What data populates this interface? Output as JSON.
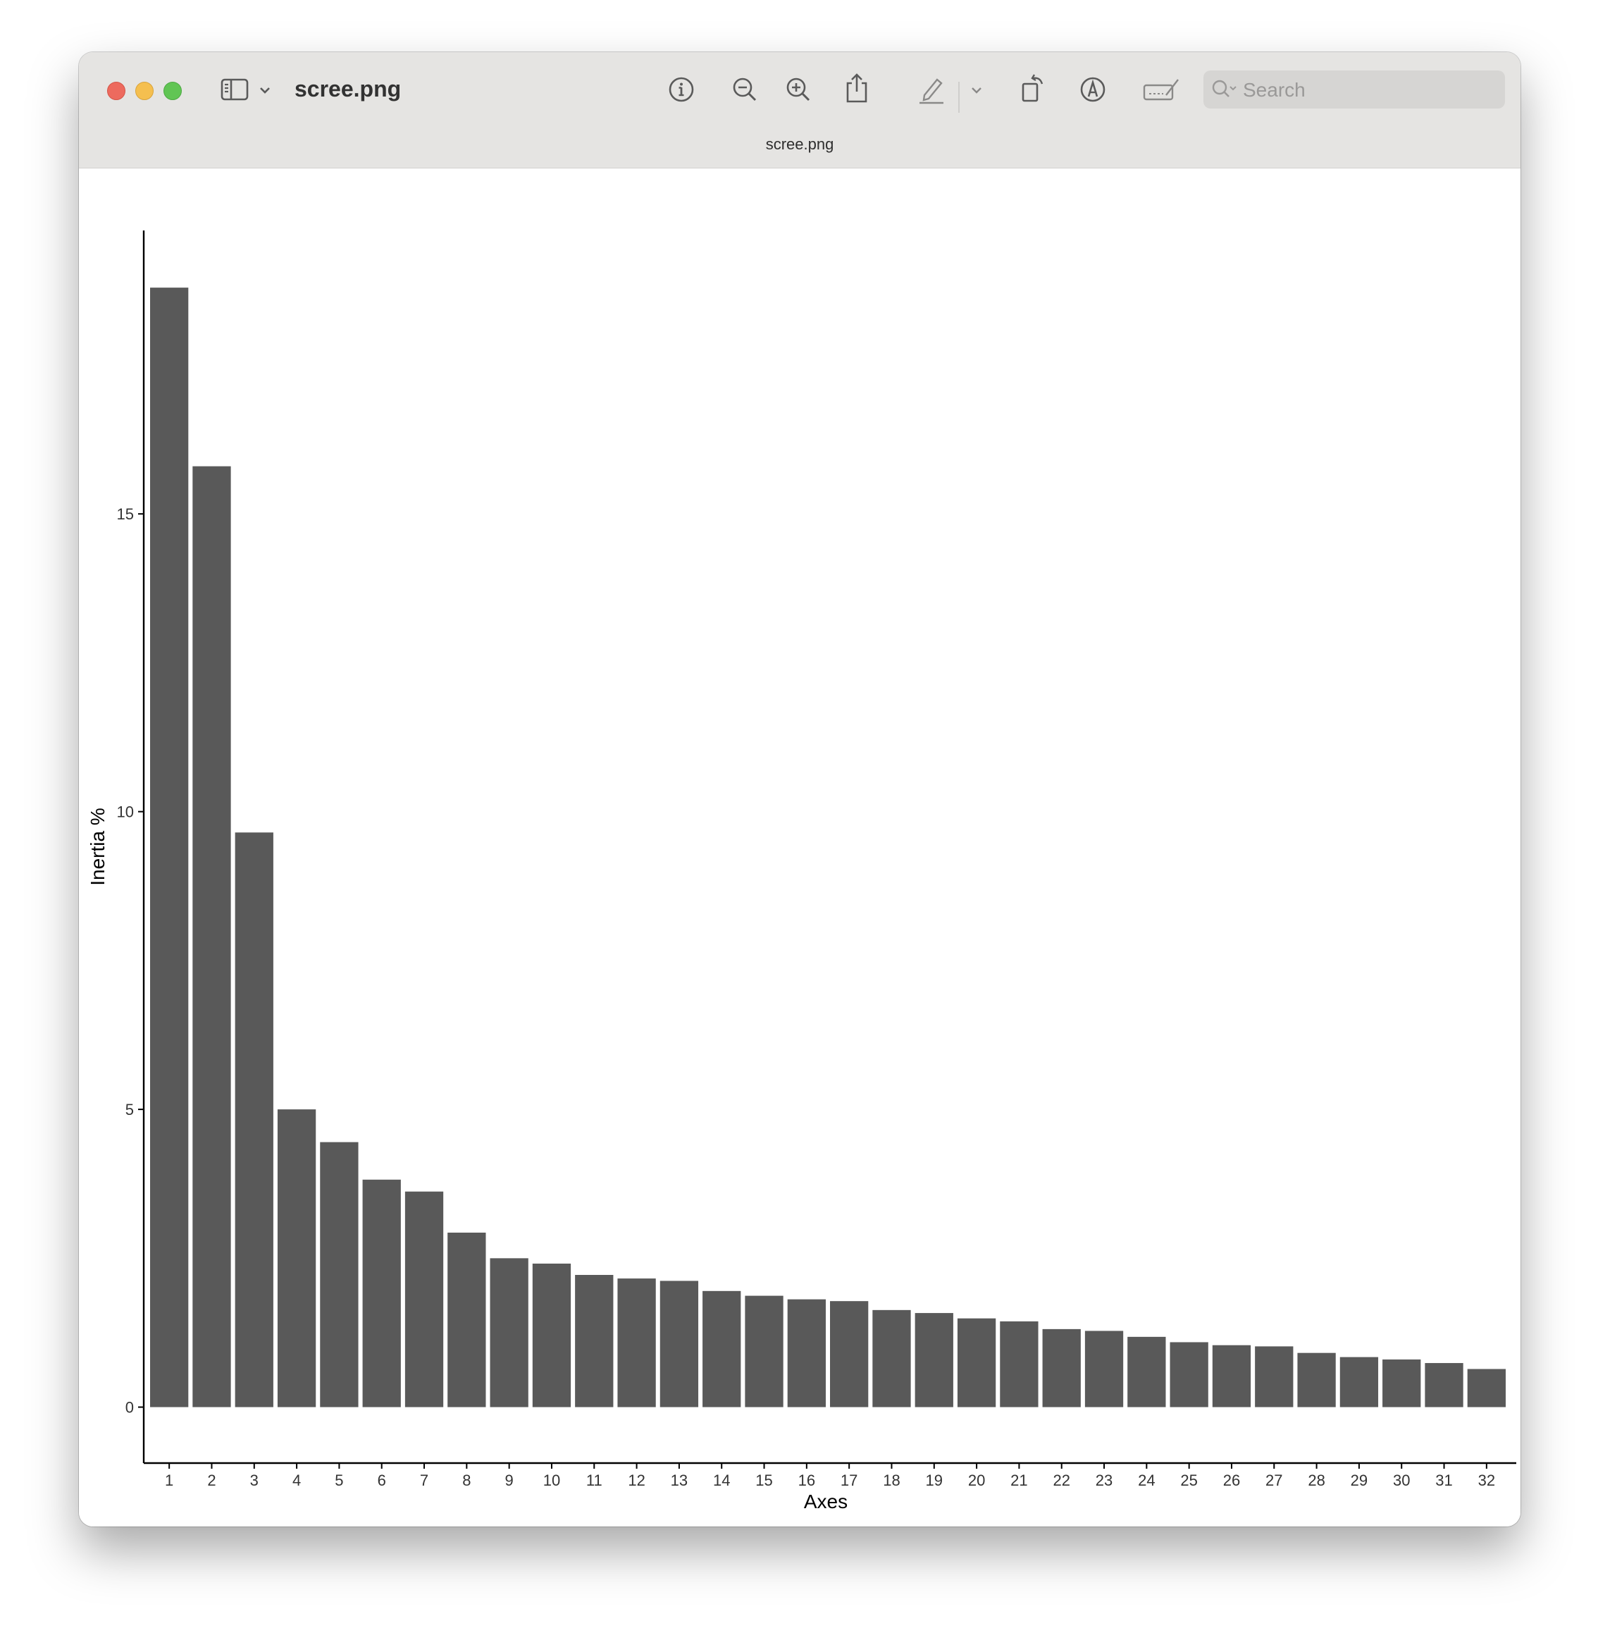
{
  "window": {
    "title": "scree.png",
    "subtitle": "scree.png",
    "search_placeholder": "Search"
  },
  "toolbar": {
    "icons": [
      "sidebar-icon",
      "chevron-down-icon",
      "info-icon",
      "zoom-out-icon",
      "zoom-in-icon",
      "share-icon",
      "highlight-pen-icon",
      "chevron-down-icon",
      "rotate-icon",
      "markup-icon",
      "signature-icon",
      "search-icon"
    ]
  },
  "chart_data": {
    "type": "bar",
    "title": "",
    "xlabel": "Axes",
    "ylabel": "Inertia %",
    "categories": [
      "1",
      "2",
      "3",
      "4",
      "5",
      "6",
      "7",
      "8",
      "9",
      "10",
      "11",
      "12",
      "13",
      "14",
      "15",
      "16",
      "17",
      "18",
      "19",
      "20",
      "21",
      "22",
      "23",
      "24",
      "25",
      "26",
      "27",
      "28",
      "29",
      "30",
      "31",
      "32"
    ],
    "values": [
      18.8,
      15.8,
      9.65,
      5.0,
      4.45,
      3.82,
      3.62,
      2.93,
      2.5,
      2.41,
      2.22,
      2.16,
      2.12,
      1.95,
      1.87,
      1.81,
      1.78,
      1.63,
      1.58,
      1.49,
      1.44,
      1.31,
      1.28,
      1.18,
      1.09,
      1.04,
      1.02,
      0.91,
      0.84,
      0.8,
      0.74,
      0.64
    ],
    "yticks": [
      "0",
      "5",
      "10",
      "15"
    ],
    "ylim": [
      -0.94,
      19.76
    ],
    "bar_color": "#595959",
    "grid": false,
    "legend": "none"
  }
}
